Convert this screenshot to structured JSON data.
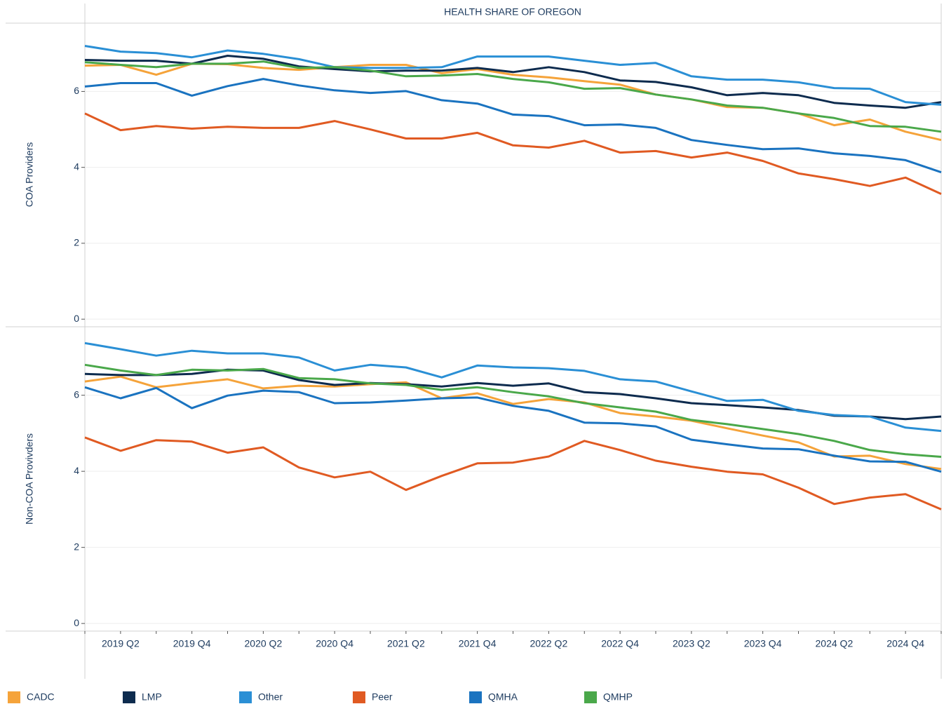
{
  "chart_data": [
    {
      "type": "line",
      "title": "HEALTH SHARE OF OREGON",
      "y_label": "COA Providers",
      "ylim": [
        -0.2,
        7.8
      ],
      "yticks": [
        0,
        2,
        4,
        6
      ],
      "grid": true,
      "legend": "bottom",
      "series": [
        {
          "name": "CADC",
          "color": "#f5a33a",
          "values": [
            6.68,
            6.7,
            6.44,
            6.73,
            6.72,
            6.62,
            6.57,
            6.64,
            6.7,
            6.7,
            6.48,
            6.59,
            6.44,
            6.37,
            6.27,
            6.18,
            5.92,
            5.79,
            5.59,
            5.57,
            5.42,
            5.11,
            5.26,
            4.94,
            4.72
          ]
        },
        {
          "name": "LMP",
          "color": "#0d2b4e",
          "values": [
            6.83,
            6.81,
            6.81,
            6.73,
            6.94,
            6.86,
            6.66,
            6.59,
            6.53,
            6.55,
            6.55,
            6.62,
            6.51,
            6.64,
            6.51,
            6.29,
            6.25,
            6.11,
            5.9,
            5.96,
            5.9,
            5.7,
            5.63,
            5.57,
            5.72
          ]
        },
        {
          "name": "Other",
          "color": "#2a8fd5",
          "values": [
            7.2,
            7.05,
            7.01,
            6.9,
            7.08,
            6.99,
            6.85,
            6.64,
            6.62,
            6.62,
            6.64,
            6.92,
            6.92,
            6.92,
            6.81,
            6.7,
            6.75,
            6.4,
            6.31,
            6.31,
            6.24,
            6.09,
            6.07,
            5.72,
            5.65
          ]
        },
        {
          "name": "Peer",
          "color": "#e05a22",
          "values": [
            5.42,
            4.98,
            5.09,
            5.02,
            5.07,
            5.04,
            5.04,
            5.22,
            5.0,
            4.76,
            4.76,
            4.91,
            4.58,
            4.52,
            4.7,
            4.39,
            4.43,
            4.26,
            4.39,
            4.17,
            3.84,
            3.69,
            3.51,
            3.73,
            3.3
          ]
        },
        {
          "name": "QMHA",
          "color": "#1a73c0",
          "values": [
            6.13,
            6.22,
            6.22,
            5.89,
            6.14,
            6.33,
            6.16,
            6.03,
            5.96,
            6.01,
            5.77,
            5.68,
            5.39,
            5.35,
            5.11,
            5.13,
            5.04,
            4.72,
            4.59,
            4.48,
            4.5,
            4.37,
            4.3,
            4.19,
            3.87
          ]
        },
        {
          "name": "QMHP",
          "color": "#4aa84a",
          "values": [
            6.77,
            6.7,
            6.64,
            6.73,
            6.73,
            6.79,
            6.62,
            6.64,
            6.55,
            6.4,
            6.42,
            6.46,
            6.33,
            6.24,
            6.07,
            6.09,
            5.92,
            5.79,
            5.63,
            5.57,
            5.42,
            5.3,
            5.09,
            5.07,
            4.94
          ]
        }
      ]
    },
    {
      "type": "line",
      "y_label": "Non-COA Provivders",
      "categories": [
        null,
        "2019 Q2",
        null,
        "2019 Q4",
        null,
        "2020 Q2",
        null,
        "2020 Q4",
        null,
        "2021 Q2",
        null,
        "2021 Q4",
        null,
        "2022 Q2",
        null,
        "2022 Q4",
        null,
        "2023 Q2",
        null,
        "2023 Q4",
        null,
        "2024 Q2",
        null,
        "2024 Q4",
        null
      ],
      "ylim": [
        -0.2,
        7.8
      ],
      "yticks": [
        0,
        2,
        4,
        6
      ],
      "grid": true,
      "series": [
        {
          "color": "#f5a33a",
          "values": [
            6.36,
            6.49,
            6.21,
            6.32,
            6.42,
            6.18,
            6.25,
            6.23,
            6.29,
            6.34,
            5.92,
            6.05,
            5.77,
            5.9,
            5.81,
            5.53,
            5.44,
            5.33,
            5.13,
            4.94,
            4.76,
            4.39,
            4.41,
            4.19,
            4.06
          ]
        },
        {
          "color": "#0d2b4e",
          "values": [
            6.56,
            6.53,
            6.53,
            6.56,
            6.67,
            6.65,
            6.4,
            6.27,
            6.32,
            6.29,
            6.23,
            6.32,
            6.25,
            6.31,
            6.08,
            6.03,
            5.92,
            5.79,
            5.74,
            5.68,
            5.61,
            5.46,
            5.44,
            5.37,
            5.44
          ]
        },
        {
          "color": "#2a8fd5",
          "values": [
            7.37,
            7.21,
            7.04,
            7.17,
            7.1,
            7.1,
            6.99,
            6.65,
            6.8,
            6.73,
            6.47,
            6.78,
            6.73,
            6.71,
            6.64,
            6.42,
            6.36,
            6.1,
            5.85,
            5.88,
            5.59,
            5.48,
            5.44,
            5.15,
            5.06
          ]
        },
        {
          "color": "#e05a22",
          "values": [
            4.89,
            4.54,
            4.82,
            4.78,
            4.49,
            4.63,
            4.1,
            3.84,
            3.99,
            3.51,
            3.88,
            4.21,
            4.23,
            4.39,
            4.8,
            4.56,
            4.28,
            4.12,
            3.99,
            3.92,
            3.57,
            3.14,
            3.31,
            3.4,
            3.0
          ]
        },
        {
          "color": "#1a73c0",
          "values": [
            6.21,
            5.92,
            6.19,
            5.66,
            5.99,
            6.12,
            6.08,
            5.79,
            5.81,
            5.86,
            5.92,
            5.94,
            5.72,
            5.59,
            5.28,
            5.26,
            5.18,
            4.83,
            4.71,
            4.6,
            4.58,
            4.41,
            4.26,
            4.25,
            3.99
          ]
        },
        {
          "color": "#4aa84a",
          "values": [
            6.8,
            6.65,
            6.53,
            6.67,
            6.65,
            6.69,
            6.45,
            6.42,
            6.31,
            6.27,
            6.14,
            6.21,
            6.08,
            5.97,
            5.79,
            5.68,
            5.57,
            5.35,
            5.24,
            5.11,
            4.98,
            4.8,
            4.56,
            4.45,
            4.38
          ]
        }
      ]
    }
  ]
}
